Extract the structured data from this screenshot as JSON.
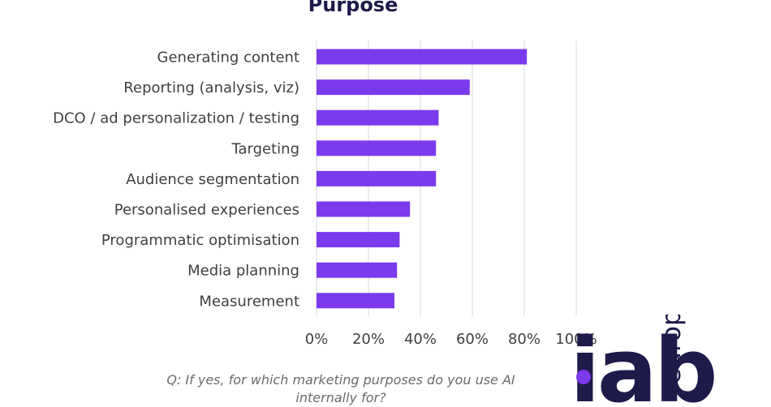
{
  "chart_data": {
    "type": "bar",
    "orientation": "horizontal",
    "title": "Purpose",
    "categories": [
      "Generating content",
      "Reporting (analysis, viz)",
      "DCO / ad personalization / testing",
      "Targeting",
      "Audience segmentation",
      "Personalised experiences",
      "Programmatic optimisation",
      "Media planning",
      "Measurement"
    ],
    "values": [
      81,
      59,
      47,
      46,
      46,
      36,
      32,
      31,
      30
    ],
    "xlim": [
      0,
      100
    ],
    "xticks": [
      0,
      20,
      40,
      60,
      80,
      100
    ],
    "tick_labels": [
      "0%",
      "20%",
      "40%",
      "60%",
      "80%",
      "100%"
    ],
    "grid": "vertical",
    "bar_color": "#7c3aed",
    "note": "Q: If yes, for which marketing purposes do you use AI internally for?"
  },
  "logo": {
    "iab": "iab",
    "europe": "europe",
    "color": "#1e1b4b",
    "dot_color": "#7c3aed"
  }
}
